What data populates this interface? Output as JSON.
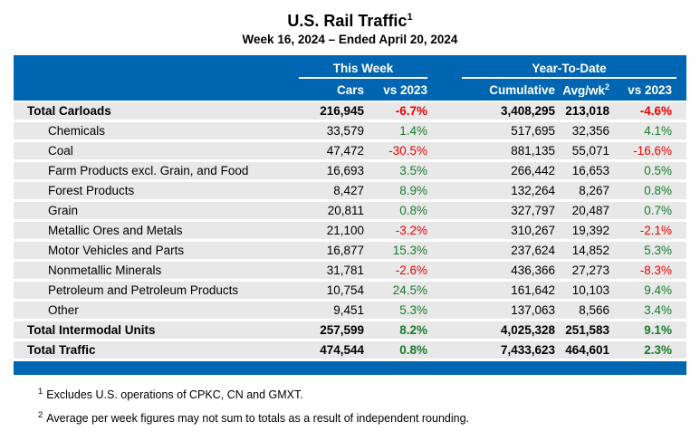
{
  "title": {
    "text": "U.S. Rail Traffic",
    "superscript": "1"
  },
  "subtitle": "Week 16, 2024 – Ended April 20, 2024",
  "colors": {
    "header_blue": "#0066B2",
    "row_gray": "#E8E8E8",
    "positive_green": "#177B2B",
    "negative_red": "#EE0000"
  },
  "table": {
    "group_headers": {
      "this_week": "This Week",
      "year_to_date": "Year-To-Date"
    },
    "columns": {
      "cars": "Cars",
      "vs_2023_week": "vs 2023",
      "cumulative": "Cumulative",
      "avg_wk": "Avg/wk",
      "avg_wk_superscript": "2",
      "vs_2023_ytd": "vs 2023"
    },
    "rows": [
      {
        "name": "Total Carloads",
        "bold": true,
        "cars": "216,945",
        "tw_pct": "-6.7%",
        "tw_dir": "neg",
        "cumulative": "3,408,295",
        "avg_wk": "213,018",
        "ytd_pct": "-4.6%",
        "ytd_dir": "neg"
      },
      {
        "name": "Chemicals",
        "bold": false,
        "cars": "33,579",
        "tw_pct": "1.4%",
        "tw_dir": "pos",
        "cumulative": "517,695",
        "avg_wk": "32,356",
        "ytd_pct": "4.1%",
        "ytd_dir": "pos"
      },
      {
        "name": "Coal",
        "bold": false,
        "cars": "47,472",
        "tw_pct": "-30.5%",
        "tw_dir": "neg",
        "cumulative": "881,135",
        "avg_wk": "55,071",
        "ytd_pct": "-16.6%",
        "ytd_dir": "neg"
      },
      {
        "name": "Farm Products excl. Grain, and Food",
        "bold": false,
        "cars": "16,693",
        "tw_pct": "3.5%",
        "tw_dir": "pos",
        "cumulative": "266,442",
        "avg_wk": "16,653",
        "ytd_pct": "0.5%",
        "ytd_dir": "pos"
      },
      {
        "name": "Forest Products",
        "bold": false,
        "cars": "8,427",
        "tw_pct": "8.9%",
        "tw_dir": "pos",
        "cumulative": "132,264",
        "avg_wk": "8,267",
        "ytd_pct": "0.8%",
        "ytd_dir": "pos"
      },
      {
        "name": "Grain",
        "bold": false,
        "cars": "20,811",
        "tw_pct": "0.8%",
        "tw_dir": "pos",
        "cumulative": "327,797",
        "avg_wk": "20,487",
        "ytd_pct": "0.7%",
        "ytd_dir": "pos"
      },
      {
        "name": "Metallic Ores and Metals",
        "bold": false,
        "cars": "21,100",
        "tw_pct": "-3.2%",
        "tw_dir": "neg",
        "cumulative": "310,267",
        "avg_wk": "19,392",
        "ytd_pct": "-2.1%",
        "ytd_dir": "neg"
      },
      {
        "name": "Motor Vehicles and Parts",
        "bold": false,
        "cars": "16,877",
        "tw_pct": "15.3%",
        "tw_dir": "pos",
        "cumulative": "237,624",
        "avg_wk": "14,852",
        "ytd_pct": "5.3%",
        "ytd_dir": "pos"
      },
      {
        "name": "Nonmetallic Minerals",
        "bold": false,
        "cars": "31,781",
        "tw_pct": "-2.6%",
        "tw_dir": "neg",
        "cumulative": "436,366",
        "avg_wk": "27,273",
        "ytd_pct": "-8.3%",
        "ytd_dir": "neg"
      },
      {
        "name": "Petroleum and Petroleum Products",
        "bold": false,
        "cars": "10,754",
        "tw_pct": "24.5%",
        "tw_dir": "pos",
        "cumulative": "161,642",
        "avg_wk": "10,103",
        "ytd_pct": "9.4%",
        "ytd_dir": "pos"
      },
      {
        "name": "Other",
        "bold": false,
        "cars": "9,451",
        "tw_pct": "5.3%",
        "tw_dir": "pos",
        "cumulative": "137,063",
        "avg_wk": "8,566",
        "ytd_pct": "3.4%",
        "ytd_dir": "pos"
      },
      {
        "name": "Total Intermodal Units",
        "bold": true,
        "cars": "257,599",
        "tw_pct": "8.2%",
        "tw_dir": "pos",
        "cumulative": "4,025,328",
        "avg_wk": "251,583",
        "ytd_pct": "9.1%",
        "ytd_dir": "pos"
      },
      {
        "name": "Total Traffic",
        "bold": true,
        "cars": "474,544",
        "tw_pct": "0.8%",
        "tw_dir": "pos",
        "cumulative": "7,433,623",
        "avg_wk": "464,601",
        "ytd_pct": "2.3%",
        "ytd_dir": "pos"
      }
    ]
  },
  "footnotes": [
    {
      "marker": "1",
      "text": "Excludes U.S. operations of CPKC, CN and GMXT."
    },
    {
      "marker": "2",
      "text": "Average per week figures may not sum to totals as a result of independent rounding."
    }
  ]
}
